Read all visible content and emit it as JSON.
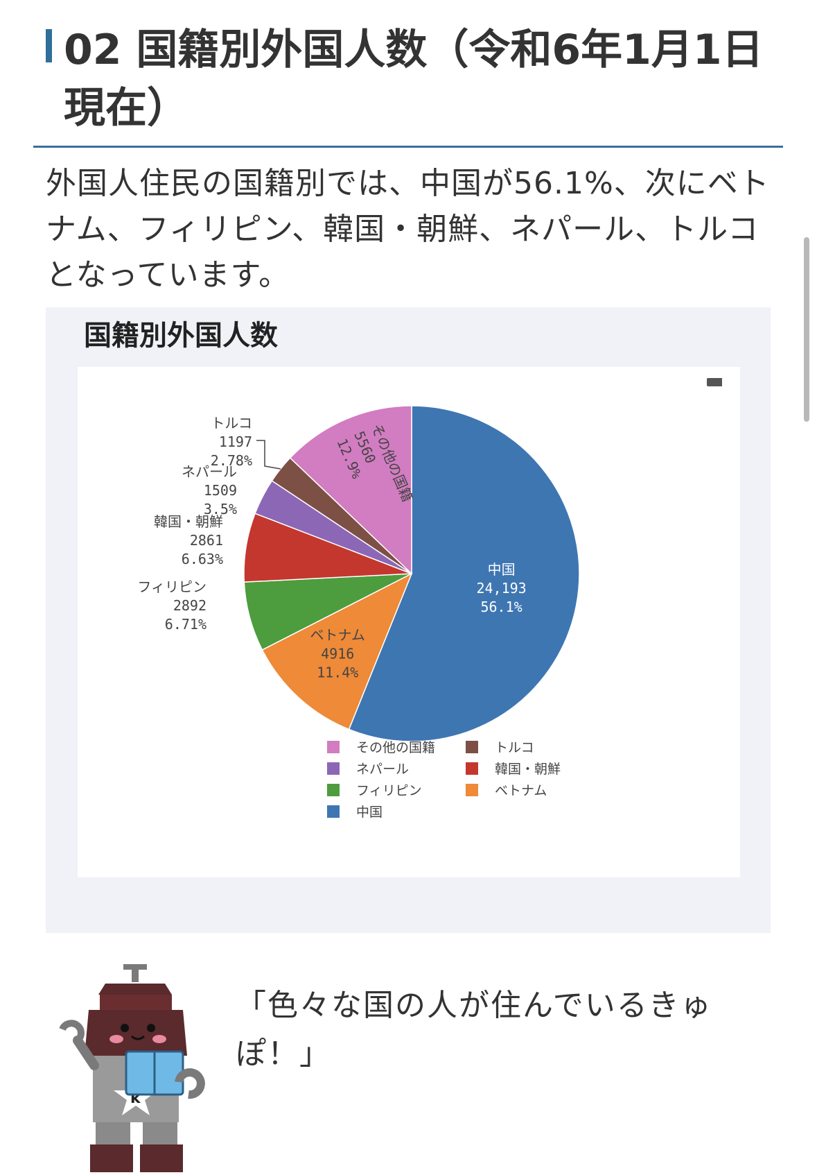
{
  "heading": {
    "text": "02 国籍別外国人数（令和6年1月1日現在）"
  },
  "intro": {
    "text": "外国人住民の国籍別では、中国が56.1%、次にベトナム、フィリピン、韓国・朝鮮、ネパール、トルコとなっています。"
  },
  "chart_title": "国籍別外国人数",
  "chart_data": {
    "type": "pie",
    "title": "国籍別外国人数",
    "slices": [
      {
        "label": "中国",
        "value": 24193,
        "value_text": "24,193",
        "percent": "56.1%",
        "color": "#3e76b2"
      },
      {
        "label": "ベトナム",
        "value": 4916,
        "value_text": "4916",
        "percent": "11.4%",
        "color": "#ee8a38"
      },
      {
        "label": "フィリピン",
        "value": 2892,
        "value_text": "2892",
        "percent": "6.71%",
        "color": "#4d9c3e"
      },
      {
        "label": "韓国・朝鮮",
        "value": 2861,
        "value_text": "2861",
        "percent": "6.63%",
        "color": "#c4372f"
      },
      {
        "label": "ネパール",
        "value": 1509,
        "value_text": "1509",
        "percent": "3.5%",
        "color": "#8c67b6"
      },
      {
        "label": "トルコ",
        "value": 1197,
        "value_text": "1197",
        "percent": "2.78%",
        "color": "#7d5046"
      },
      {
        "label": "その他の国籍",
        "value": 5560,
        "value_text": "5560",
        "percent": "12.9%",
        "color": "#d27cc1"
      }
    ],
    "legend": {
      "placement": "bottom",
      "order": [
        "その他の国籍",
        "トルコ",
        "ネパール",
        "韓国・朝鮮",
        "フィリピン",
        "ベトナム",
        "中国"
      ]
    }
  },
  "mascot": {
    "speech": "「色々な国の人が住んでいるきゅぽ！」"
  }
}
